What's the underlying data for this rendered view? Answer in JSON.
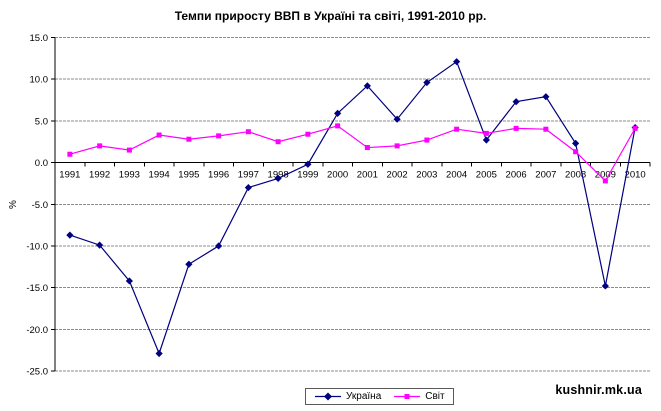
{
  "watermark": "kushnir.mk.ua",
  "chart_data": {
    "type": "line",
    "title": "Темпи приросту ВВП в Україні та світі, 1991-2010 рр.",
    "xlabel": "",
    "ylabel": "%",
    "categories": [
      "1991",
      "1992",
      "1993",
      "1994",
      "1995",
      "1996",
      "1997",
      "1998",
      "1999",
      "2000",
      "2001",
      "2002",
      "2003",
      "2004",
      "2005",
      "2006",
      "2007",
      "2008",
      "2009",
      "2010"
    ],
    "series": [
      {
        "name": "Україна",
        "color": "#000080",
        "marker": "diamond",
        "values": [
          -8.7,
          -9.9,
          -14.2,
          -22.9,
          -12.2,
          -10.0,
          -3.0,
          -1.9,
          -0.2,
          5.9,
          9.2,
          5.2,
          9.6,
          12.1,
          2.7,
          7.3,
          7.9,
          2.3,
          -14.8,
          4.2
        ]
      },
      {
        "name": "Світ",
        "color": "#FF00FF",
        "marker": "square",
        "values": [
          1.0,
          2.0,
          1.5,
          3.3,
          2.8,
          3.2,
          3.7,
          2.5,
          3.4,
          4.4,
          1.8,
          2.0,
          2.7,
          4.0,
          3.5,
          4.1,
          4.0,
          1.3,
          -2.2,
          4.1
        ]
      }
    ],
    "ylim": [
      -25,
      15
    ],
    "ytick_step": 5,
    "yticks": [
      "15.0",
      "10.0",
      "5.0",
      "0.0",
      "-5.0",
      "-10.0",
      "-15.0",
      "-20.0",
      "-25.0"
    ],
    "grid": true,
    "gridline_color": "#8c8c8c",
    "axis_color": "#000000",
    "legend_position": "bottom-center"
  }
}
